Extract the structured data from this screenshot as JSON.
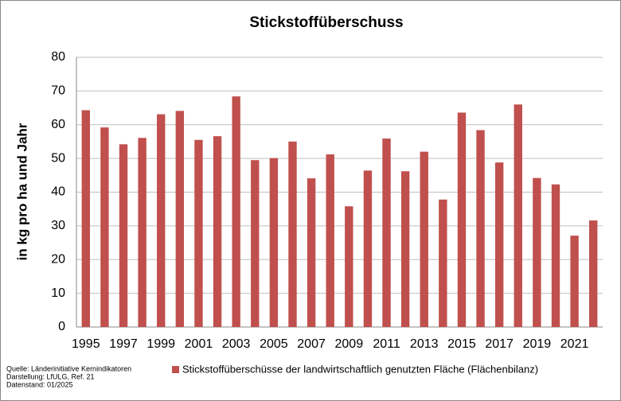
{
  "chart_data": {
    "type": "bar",
    "title": "Stickstoffüberschuss",
    "y_label": "in kg pro ha und Jahr",
    "categories": [
      "1995",
      null,
      "1997",
      null,
      "1999",
      null,
      "2001",
      null,
      "2003",
      null,
      "2005",
      null,
      "2007",
      null,
      "2009",
      null,
      "2011",
      null,
      "2013",
      null,
      "2015",
      null,
      "2017",
      null,
      "2019",
      null,
      "2021",
      null
    ],
    "series": [
      {
        "name": "Stickstoffüberschüsse der landwirtschaftlich genutzten Fläche (Flächenbilanz)",
        "color": "#c0504d",
        "values": [
          64.3,
          59.2,
          54.2,
          56.1,
          63.1,
          64.1,
          55.5,
          56.6,
          68.4,
          49.5,
          50.1,
          55.0,
          44.1,
          51.2,
          35.8,
          46.4,
          55.9,
          46.2,
          52.0,
          37.8,
          63.6,
          58.4,
          48.8,
          66.0,
          44.2,
          42.3,
          27.1,
          31.6
        ]
      }
    ],
    "ylim": [
      0,
      80
    ],
    "yticks": [
      0,
      10,
      20,
      30,
      40,
      50,
      60,
      70,
      80
    ],
    "grid": true,
    "notes": [
      "Quelle: Länderinitiative Kernindikatoren",
      "Darstellung: LfULG, Ref. 21",
      "Datenstand: 01/2025"
    ]
  }
}
